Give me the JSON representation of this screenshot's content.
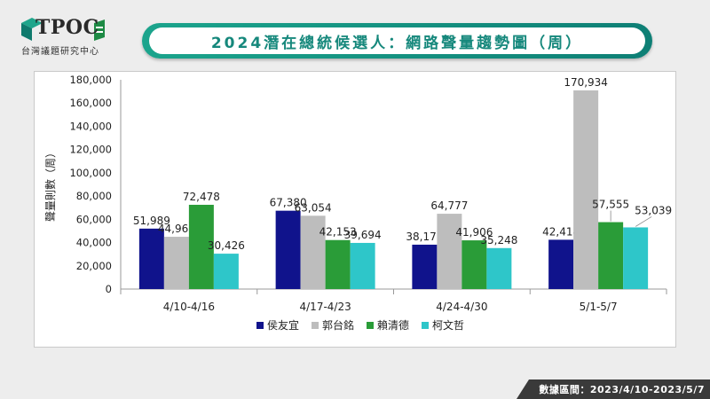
{
  "brand": {
    "logo_text": "TPOC",
    "logo_subtitle": "台灣議題研究中心"
  },
  "title": "2024潛在總統候選人：網路聲量趨勢圖（周）",
  "footer": "數據區間：2023/4/10-2023/5/7",
  "chart_data": {
    "type": "bar",
    "ylabel": "聲量則數（周）",
    "ylim": [
      0,
      180000
    ],
    "yticks": [
      0,
      20000,
      40000,
      60000,
      80000,
      100000,
      120000,
      140000,
      160000,
      180000
    ],
    "ytick_labels": [
      "0",
      "20,000",
      "40,000",
      "60,000",
      "80,000",
      "100,000",
      "120,000",
      "140,000",
      "160,000",
      "180,000"
    ],
    "categories": [
      "4/10-4/16",
      "4/17-4/23",
      "4/24-4/30",
      "5/1-5/7"
    ],
    "legend": "bottom",
    "grid": false,
    "series": [
      {
        "name": "侯友宜",
        "color": "#10138c",
        "values": [
          51989,
          67380,
          38175,
          42414
        ],
        "labels": [
          "51,989",
          "67,380",
          "38,175",
          "42,414"
        ]
      },
      {
        "name": "郭台銘",
        "color": "#bdbdbd",
        "values": [
          44960,
          63054,
          64777,
          170934
        ],
        "labels": [
          "44,960",
          "63,054",
          "64,777",
          "170,934"
        ]
      },
      {
        "name": "賴清德",
        "color": "#2a9c38",
        "values": [
          72478,
          42153,
          41906,
          57555
        ],
        "labels": [
          "72,478",
          "42,153",
          "41,906",
          "57,555"
        ]
      },
      {
        "name": "柯文哲",
        "color": "#2ec6c9",
        "values": [
          30426,
          39694,
          35248,
          53039
        ],
        "labels": [
          "30,426",
          "39,694",
          "35,248",
          "53,039"
        ]
      }
    ]
  }
}
